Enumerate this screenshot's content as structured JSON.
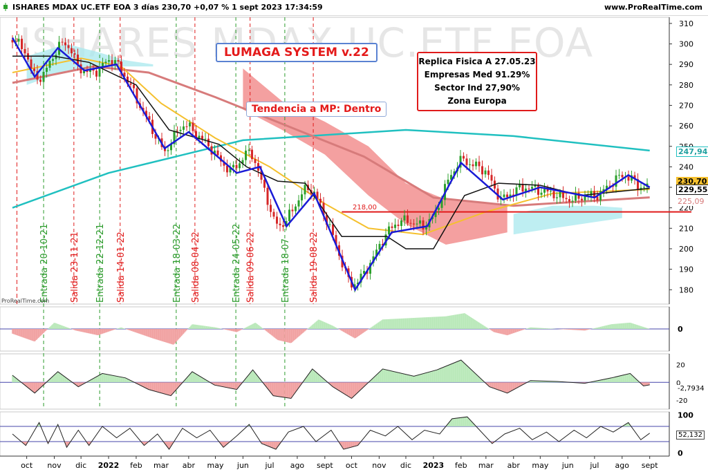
{
  "header": {
    "title": "ISHARES MDAX UC.ETF EOA 3 días 230,70 +0,07 % 1 sept 2023 17:34:59",
    "site": "www.ProRealTime.com"
  },
  "watermark": "ISHARES MDAX UC.ETF EOA",
  "watermark_small": "ProRealTime.com",
  "annotations": {
    "system": "LUMAGA SYSTEM v.22",
    "trend": "Tendencia a MP: Dentro",
    "info": [
      "Replica Fisica A 27.05.23",
      "Empresas Med 91.29%",
      "Sector Ind 27,90%",
      "Zona Europa"
    ]
  },
  "badges": {
    "sma200": "247,94",
    "close": "230,70",
    "line": "229,55",
    "sma50": "225,09",
    "level": "218,00",
    "osc2": "-2,7934",
    "osc3": "52,132"
  },
  "colors": {
    "up": "#2ca02c",
    "down": "#d62728",
    "blue": "#1a1ad6",
    "black": "#111111",
    "yellow": "#f5c02e",
    "salmon": "#d77b7b",
    "teal": "#20c0c0",
    "cloud_up": "#a8e8ee",
    "cloud_down": "#f08080",
    "pos_fill": "#b8e8b8",
    "neg_fill": "#f0a0a0",
    "red_line": "#e01a1a"
  },
  "chart_data": {
    "type": "line",
    "price_axis": {
      "ylim": [
        173,
        313
      ],
      "ticks": [
        180,
        190,
        200,
        210,
        220,
        230,
        240,
        250,
        260,
        270,
        280,
        290,
        300,
        310
      ]
    },
    "x_labels": [
      "oct",
      "nov",
      "dic",
      "2022",
      "feb",
      "mar",
      "abr",
      "may",
      "jun",
      "jul",
      "ago",
      "sept",
      "oct",
      "nov",
      "dic",
      "2023",
      "feb",
      "mar",
      "abr",
      "may",
      "jun",
      "jul",
      "ago",
      "sept"
    ],
    "close_path": [
      [
        "2021-09-15",
        302
      ],
      [
        "2021-09-28",
        298
      ],
      [
        "2021-10-08",
        285
      ],
      [
        "2021-10-18",
        283
      ],
      [
        "2021-10-28",
        292
      ],
      [
        "2021-11-05",
        298
      ],
      [
        "2021-11-12",
        301
      ],
      [
        "2021-11-20",
        297
      ],
      [
        "2021-11-26",
        290
      ],
      [
        "2021-12-03",
        287
      ],
      [
        "2021-12-10",
        286
      ],
      [
        "2021-12-20",
        287
      ],
      [
        "2021-12-31",
        292
      ],
      [
        "2022-01-07",
        292
      ],
      [
        "2022-01-14",
        288
      ],
      [
        "2022-01-25",
        280
      ],
      [
        "2022-02-05",
        270
      ],
      [
        "2022-02-15",
        262
      ],
      [
        "2022-02-25",
        253
      ],
      [
        "2022-03-05",
        247
      ],
      [
        "2022-03-12",
        252
      ],
      [
        "2022-03-20",
        258
      ],
      [
        "2022-03-28",
        261
      ],
      [
        "2022-04-05",
        258
      ],
      [
        "2022-04-12",
        255
      ],
      [
        "2022-04-20",
        252
      ],
      [
        "2022-04-28",
        248
      ],
      [
        "2022-05-08",
        242
      ],
      [
        "2022-05-18",
        238
      ],
      [
        "2022-05-28",
        242
      ],
      [
        "2022-06-05",
        247
      ],
      [
        "2022-06-12",
        246
      ],
      [
        "2022-06-20",
        235
      ],
      [
        "2022-06-28",
        225
      ],
      [
        "2022-07-05",
        214
      ],
      [
        "2022-07-12",
        211
      ],
      [
        "2022-07-20",
        214
      ],
      [
        "2022-07-28",
        220
      ],
      [
        "2022-08-05",
        226
      ],
      [
        "2022-08-12",
        230
      ],
      [
        "2022-08-19",
        228
      ],
      [
        "2022-08-26",
        222
      ],
      [
        "2022-09-05",
        212
      ],
      [
        "2022-09-15",
        200
      ],
      [
        "2022-09-25",
        187
      ],
      [
        "2022-10-02",
        182
      ],
      [
        "2022-10-10",
        185
      ],
      [
        "2022-10-18",
        190
      ],
      [
        "2022-10-26",
        196
      ],
      [
        "2022-11-03",
        203
      ],
      [
        "2022-11-12",
        209
      ],
      [
        "2022-11-22",
        213
      ],
      [
        "2022-12-02",
        214
      ],
      [
        "2022-12-12",
        212
      ],
      [
        "2022-12-22",
        211
      ],
      [
        "2023-01-02",
        216
      ],
      [
        "2023-01-10",
        225
      ],
      [
        "2023-01-18",
        234
      ],
      [
        "2023-01-26",
        240
      ],
      [
        "2023-02-03",
        244
      ],
      [
        "2023-02-12",
        241
      ],
      [
        "2023-02-22",
        240
      ],
      [
        "2023-03-02",
        237
      ],
      [
        "2023-03-10",
        230
      ],
      [
        "2023-03-18",
        224
      ],
      [
        "2023-03-26",
        226
      ],
      [
        "2023-04-05",
        229
      ],
      [
        "2023-04-15",
        230
      ],
      [
        "2023-04-25",
        229
      ],
      [
        "2023-05-05",
        228
      ],
      [
        "2023-05-15",
        227
      ],
      [
        "2023-05-25",
        225
      ],
      [
        "2023-06-05",
        224
      ],
      [
        "2023-06-15",
        225
      ],
      [
        "2023-06-25",
        226
      ],
      [
        "2023-07-05",
        226
      ],
      [
        "2023-07-15",
        230
      ],
      [
        "2023-07-25",
        234
      ],
      [
        "2023-08-03",
        236
      ],
      [
        "2023-08-12",
        234
      ],
      [
        "2023-08-20",
        230
      ],
      [
        "2023-09-01",
        230.7
      ]
    ],
    "lines": {
      "sma200": [
        [
          "2021-09-15",
          220
        ],
        [
          "2022-01-01",
          237
        ],
        [
          "2022-06-01",
          253
        ],
        [
          "2022-12-01",
          258
        ],
        [
          "2023-04-01",
          255
        ],
        [
          "2023-09-01",
          247.94
        ]
      ],
      "sma100_salmon": [
        [
          "2021-09-15",
          281
        ],
        [
          "2021-12-15",
          289
        ],
        [
          "2022-02-15",
          286
        ],
        [
          "2022-05-01",
          274
        ],
        [
          "2022-08-01",
          258
        ],
        [
          "2022-10-15",
          245
        ],
        [
          "2023-01-01",
          225
        ],
        [
          "2023-04-01",
          221
        ],
        [
          "2023-09-01",
          225.09
        ]
      ],
      "sma50_yellow": [
        [
          "2021-09-15",
          286
        ],
        [
          "2021-12-01",
          293
        ],
        [
          "2022-01-15",
          289
        ],
        [
          "2022-03-01",
          271
        ],
        [
          "2022-05-01",
          254
        ],
        [
          "2022-07-01",
          240
        ],
        [
          "2022-09-01",
          222
        ],
        [
          "2022-10-20",
          210
        ],
        [
          "2022-12-20",
          207
        ],
        [
          "2023-03-01",
          218
        ],
        [
          "2023-05-15",
          227
        ],
        [
          "2023-09-01",
          229
        ]
      ],
      "kijun_black": [
        [
          "2021-09-15",
          294
        ],
        [
          "2021-11-01",
          294
        ],
        [
          "2021-12-10",
          291
        ],
        [
          "2022-02-01",
          280
        ],
        [
          "2022-03-10",
          258
        ],
        [
          "2022-05-05",
          251
        ],
        [
          "2022-06-05",
          240
        ],
        [
          "2022-07-10",
          233
        ],
        [
          "2022-08-10",
          232
        ],
        [
          "2022-09-20",
          206
        ],
        [
          "2022-11-10",
          206
        ],
        [
          "2022-12-01",
          200
        ],
        [
          "2023-01-01",
          200
        ],
        [
          "2023-02-05",
          226
        ],
        [
          "2023-03-15",
          232
        ],
        [
          "2023-05-01",
          231
        ],
        [
          "2023-06-15",
          226
        ],
        [
          "2023-09-01",
          229.55
        ]
      ],
      "tenkan_blue": [
        [
          "2021-09-15",
          303
        ],
        [
          "2021-10-10",
          284
        ],
        [
          "2021-11-05",
          298
        ],
        [
          "2021-12-05",
          287
        ],
        [
          "2022-01-10",
          290
        ],
        [
          "2022-03-05",
          249
        ],
        [
          "2022-04-01",
          257
        ],
        [
          "2022-05-25",
          237
        ],
        [
          "2022-06-20",
          240
        ],
        [
          "2022-07-20",
          211
        ],
        [
          "2022-08-20",
          227
        ],
        [
          "2022-10-05",
          180
        ],
        [
          "2022-11-15",
          208
        ],
        [
          "2022-12-25",
          211
        ],
        [
          "2023-02-01",
          242
        ],
        [
          "2023-03-20",
          224
        ],
        [
          "2023-05-01",
          230
        ],
        [
          "2023-07-01",
          225
        ],
        [
          "2023-08-08",
          236
        ],
        [
          "2023-09-01",
          230
        ]
      ]
    },
    "level_line": {
      "value": 218.0,
      "from": "2022-09-20",
      "to": "2023-09-10"
    },
    "signals": [
      {
        "label": "Entrada 20-10-21",
        "date": "2021-10-20",
        "type": "buy"
      },
      {
        "label": "Salida 23-11-21",
        "date": "2021-11-23",
        "type": "sell"
      },
      {
        "label": "Entrada 22-12-21",
        "date": "2021-12-22",
        "type": "buy"
      },
      {
        "label": "Salida 14-01-22",
        "date": "2022-01-14",
        "type": "sell"
      },
      {
        "label": "Entrada 18-03-22",
        "date": "2022-03-18",
        "type": "buy"
      },
      {
        "label": "Salida 08-04-22",
        "date": "2022-04-08",
        "type": "sell"
      },
      {
        "label": "Entrada 24-05-22",
        "date": "2022-05-24",
        "type": "buy"
      },
      {
        "label": "Salida 09-06-22",
        "date": "2022-06-09",
        "type": "sell"
      },
      {
        "label": "Entrada 18-07",
        "date": "2022-07-18",
        "type": "buy"
      },
      {
        "label": "Salida 19-08-22",
        "date": "2022-08-19",
        "type": "sell"
      }
    ],
    "extra_vlines": [
      "2021-09-20"
    ],
    "osc1": {
      "ticks": [
        0
      ],
      "values": [
        [
          "2021-09-15",
          -3
        ],
        [
          "2021-10-10",
          -8
        ],
        [
          "2021-11-01",
          4
        ],
        [
          "2021-11-25",
          -1
        ],
        [
          "2021-12-20",
          -4
        ],
        [
          "2022-01-15",
          1
        ],
        [
          "2022-02-20",
          -6
        ],
        [
          "2022-03-15",
          -10
        ],
        [
          "2022-04-05",
          3
        ],
        [
          "2022-05-01",
          1
        ],
        [
          "2022-05-25",
          -2
        ],
        [
          "2022-06-15",
          4
        ],
        [
          "2022-07-10",
          -7
        ],
        [
          "2022-07-25",
          -9
        ],
        [
          "2022-08-25",
          6
        ],
        [
          "2022-09-10",
          2
        ],
        [
          "2022-10-05",
          -6
        ],
        [
          "2022-11-05",
          6
        ],
        [
          "2022-12-10",
          7
        ],
        [
          "2023-01-15",
          8
        ],
        [
          "2023-02-05",
          10
        ],
        [
          "2023-03-10",
          -2
        ],
        [
          "2023-03-25",
          -4
        ],
        [
          "2023-04-20",
          1
        ],
        [
          "2023-05-20",
          0
        ],
        [
          "2023-06-20",
          -1
        ],
        [
          "2023-07-20",
          3
        ],
        [
          "2023-08-10",
          4
        ],
        [
          "2023-09-01",
          0
        ]
      ]
    },
    "osc2": {
      "ticks": [
        20,
        0,
        -20
      ],
      "values": [
        [
          "2021-09-15",
          8
        ],
        [
          "2021-10-10",
          -12
        ],
        [
          "2021-11-05",
          12
        ],
        [
          "2021-11-28",
          -5
        ],
        [
          "2021-12-25",
          10
        ],
        [
          "2022-01-20",
          5
        ],
        [
          "2022-02-15",
          -8
        ],
        [
          "2022-03-12",
          -15
        ],
        [
          "2022-04-05",
          12
        ],
        [
          "2022-04-30",
          -3
        ],
        [
          "2022-05-25",
          -8
        ],
        [
          "2022-06-12",
          14
        ],
        [
          "2022-07-05",
          -15
        ],
        [
          "2022-07-25",
          -18
        ],
        [
          "2022-08-18",
          15
        ],
        [
          "2022-09-10",
          -5
        ],
        [
          "2022-10-01",
          -18
        ],
        [
          "2022-11-05",
          15
        ],
        [
          "2022-12-10",
          7
        ],
        [
          "2023-01-05",
          14
        ],
        [
          "2023-02-01",
          25
        ],
        [
          "2023-03-05",
          -5
        ],
        [
          "2023-03-25",
          -12
        ],
        [
          "2023-04-20",
          2
        ],
        [
          "2023-05-20",
          1
        ],
        [
          "2023-06-20",
          -1
        ],
        [
          "2023-07-20",
          5
        ],
        [
          "2023-08-10",
          10
        ],
        [
          "2023-08-25",
          -4
        ],
        [
          "2023-09-01",
          -2.79
        ]
      ]
    },
    "osc3": {
      "ticks": [
        100,
        50,
        0
      ],
      "upper": 70,
      "lower": 30,
      "values": [
        [
          "2021-09-15",
          50
        ],
        [
          "2021-09-30",
          20
        ],
        [
          "2021-10-15",
          80
        ],
        [
          "2021-10-25",
          25
        ],
        [
          "2021-11-05",
          75
        ],
        [
          "2021-11-15",
          15
        ],
        [
          "2021-11-28",
          60
        ],
        [
          "2021-12-10",
          20
        ],
        [
          "2021-12-25",
          70
        ],
        [
          "2022-01-10",
          40
        ],
        [
          "2022-01-25",
          65
        ],
        [
          "2022-02-10",
          20
        ],
        [
          "2022-02-25",
          50
        ],
        [
          "2022-03-10",
          10
        ],
        [
          "2022-03-25",
          65
        ],
        [
          "2022-04-10",
          40
        ],
        [
          "2022-04-25",
          60
        ],
        [
          "2022-05-10",
          15
        ],
        [
          "2022-05-25",
          45
        ],
        [
          "2022-06-08",
          75
        ],
        [
          "2022-06-22",
          25
        ],
        [
          "2022-07-08",
          10
        ],
        [
          "2022-07-22",
          55
        ],
        [
          "2022-08-08",
          70
        ],
        [
          "2022-08-22",
          30
        ],
        [
          "2022-09-08",
          60
        ],
        [
          "2022-09-22",
          10
        ],
        [
          "2022-10-08",
          20
        ],
        [
          "2022-10-22",
          60
        ],
        [
          "2022-11-08",
          45
        ],
        [
          "2022-11-22",
          70
        ],
        [
          "2022-12-08",
          35
        ],
        [
          "2022-12-22",
          60
        ],
        [
          "2023-01-08",
          50
        ],
        [
          "2023-01-22",
          90
        ],
        [
          "2023-02-08",
          95
        ],
        [
          "2023-02-22",
          60
        ],
        [
          "2023-03-08",
          25
        ],
        [
          "2023-03-22",
          50
        ],
        [
          "2023-04-08",
          65
        ],
        [
          "2023-04-22",
          35
        ],
        [
          "2023-05-08",
          55
        ],
        [
          "2023-05-22",
          30
        ],
        [
          "2023-06-08",
          60
        ],
        [
          "2023-06-22",
          40
        ],
        [
          "2023-07-08",
          70
        ],
        [
          "2023-07-22",
          55
        ],
        [
          "2023-08-08",
          80
        ],
        [
          "2023-08-22",
          35
        ],
        [
          "2023-09-01",
          52.13
        ]
      ]
    }
  }
}
